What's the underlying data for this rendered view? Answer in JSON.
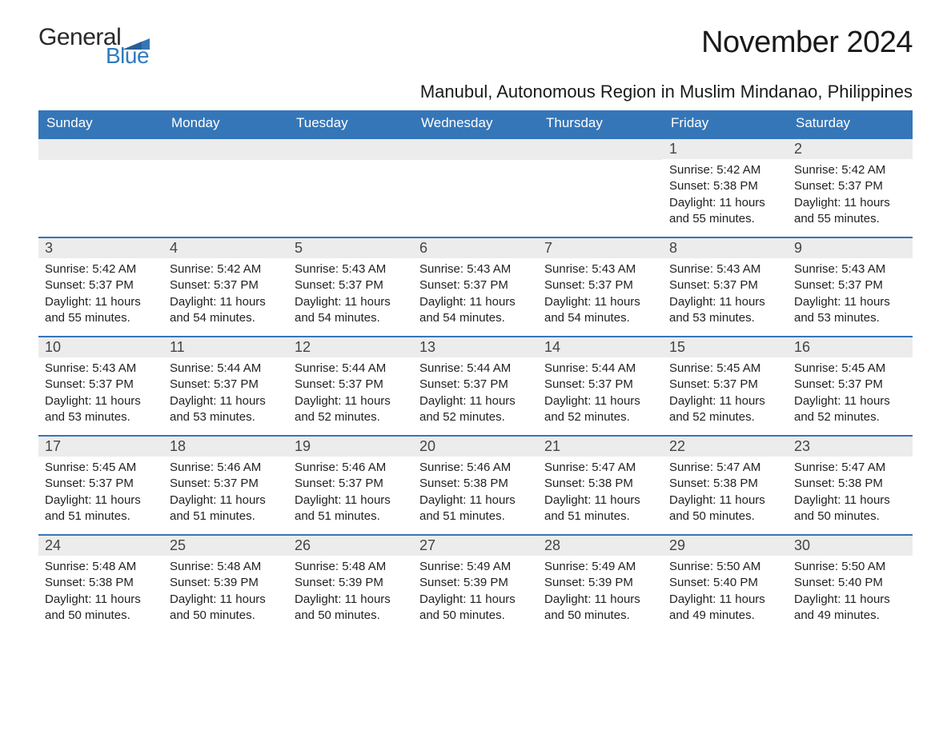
{
  "logo": {
    "general": "General",
    "blue": "Blue"
  },
  "title": "November 2024",
  "location": "Manubul, Autonomous Region in Muslim Mindanao, Philippines",
  "colors": {
    "header_bg": "#3576b8",
    "header_fg": "#ffffff",
    "daynum_bg": "#ececec",
    "text": "#222222",
    "logo_blue": "#2f7bbf",
    "border": "#3576b8"
  },
  "typography": {
    "title_fontsize": 38,
    "location_fontsize": 22,
    "dow_fontsize": 17,
    "daynum_fontsize": 18,
    "body_fontsize": 15
  },
  "days_of_week": [
    "Sunday",
    "Monday",
    "Tuesday",
    "Wednesday",
    "Thursday",
    "Friday",
    "Saturday"
  ],
  "weeks": [
    [
      null,
      null,
      null,
      null,
      null,
      {
        "n": "1",
        "sunrise": "Sunrise: 5:42 AM",
        "sunset": "Sunset: 5:38 PM",
        "daylight": "Daylight: 11 hours and 55 minutes."
      },
      {
        "n": "2",
        "sunrise": "Sunrise: 5:42 AM",
        "sunset": "Sunset: 5:37 PM",
        "daylight": "Daylight: 11 hours and 55 minutes."
      }
    ],
    [
      {
        "n": "3",
        "sunrise": "Sunrise: 5:42 AM",
        "sunset": "Sunset: 5:37 PM",
        "daylight": "Daylight: 11 hours and 55 minutes."
      },
      {
        "n": "4",
        "sunrise": "Sunrise: 5:42 AM",
        "sunset": "Sunset: 5:37 PM",
        "daylight": "Daylight: 11 hours and 54 minutes."
      },
      {
        "n": "5",
        "sunrise": "Sunrise: 5:43 AM",
        "sunset": "Sunset: 5:37 PM",
        "daylight": "Daylight: 11 hours and 54 minutes."
      },
      {
        "n": "6",
        "sunrise": "Sunrise: 5:43 AM",
        "sunset": "Sunset: 5:37 PM",
        "daylight": "Daylight: 11 hours and 54 minutes."
      },
      {
        "n": "7",
        "sunrise": "Sunrise: 5:43 AM",
        "sunset": "Sunset: 5:37 PM",
        "daylight": "Daylight: 11 hours and 54 minutes."
      },
      {
        "n": "8",
        "sunrise": "Sunrise: 5:43 AM",
        "sunset": "Sunset: 5:37 PM",
        "daylight": "Daylight: 11 hours and 53 minutes."
      },
      {
        "n": "9",
        "sunrise": "Sunrise: 5:43 AM",
        "sunset": "Sunset: 5:37 PM",
        "daylight": "Daylight: 11 hours and 53 minutes."
      }
    ],
    [
      {
        "n": "10",
        "sunrise": "Sunrise: 5:43 AM",
        "sunset": "Sunset: 5:37 PM",
        "daylight": "Daylight: 11 hours and 53 minutes."
      },
      {
        "n": "11",
        "sunrise": "Sunrise: 5:44 AM",
        "sunset": "Sunset: 5:37 PM",
        "daylight": "Daylight: 11 hours and 53 minutes."
      },
      {
        "n": "12",
        "sunrise": "Sunrise: 5:44 AM",
        "sunset": "Sunset: 5:37 PM",
        "daylight": "Daylight: 11 hours and 52 minutes."
      },
      {
        "n": "13",
        "sunrise": "Sunrise: 5:44 AM",
        "sunset": "Sunset: 5:37 PM",
        "daylight": "Daylight: 11 hours and 52 minutes."
      },
      {
        "n": "14",
        "sunrise": "Sunrise: 5:44 AM",
        "sunset": "Sunset: 5:37 PM",
        "daylight": "Daylight: 11 hours and 52 minutes."
      },
      {
        "n": "15",
        "sunrise": "Sunrise: 5:45 AM",
        "sunset": "Sunset: 5:37 PM",
        "daylight": "Daylight: 11 hours and 52 minutes."
      },
      {
        "n": "16",
        "sunrise": "Sunrise: 5:45 AM",
        "sunset": "Sunset: 5:37 PM",
        "daylight": "Daylight: 11 hours and 52 minutes."
      }
    ],
    [
      {
        "n": "17",
        "sunrise": "Sunrise: 5:45 AM",
        "sunset": "Sunset: 5:37 PM",
        "daylight": "Daylight: 11 hours and 51 minutes."
      },
      {
        "n": "18",
        "sunrise": "Sunrise: 5:46 AM",
        "sunset": "Sunset: 5:37 PM",
        "daylight": "Daylight: 11 hours and 51 minutes."
      },
      {
        "n": "19",
        "sunrise": "Sunrise: 5:46 AM",
        "sunset": "Sunset: 5:37 PM",
        "daylight": "Daylight: 11 hours and 51 minutes."
      },
      {
        "n": "20",
        "sunrise": "Sunrise: 5:46 AM",
        "sunset": "Sunset: 5:38 PM",
        "daylight": "Daylight: 11 hours and 51 minutes."
      },
      {
        "n": "21",
        "sunrise": "Sunrise: 5:47 AM",
        "sunset": "Sunset: 5:38 PM",
        "daylight": "Daylight: 11 hours and 51 minutes."
      },
      {
        "n": "22",
        "sunrise": "Sunrise: 5:47 AM",
        "sunset": "Sunset: 5:38 PM",
        "daylight": "Daylight: 11 hours and 50 minutes."
      },
      {
        "n": "23",
        "sunrise": "Sunrise: 5:47 AM",
        "sunset": "Sunset: 5:38 PM",
        "daylight": "Daylight: 11 hours and 50 minutes."
      }
    ],
    [
      {
        "n": "24",
        "sunrise": "Sunrise: 5:48 AM",
        "sunset": "Sunset: 5:38 PM",
        "daylight": "Daylight: 11 hours and 50 minutes."
      },
      {
        "n": "25",
        "sunrise": "Sunrise: 5:48 AM",
        "sunset": "Sunset: 5:39 PM",
        "daylight": "Daylight: 11 hours and 50 minutes."
      },
      {
        "n": "26",
        "sunrise": "Sunrise: 5:48 AM",
        "sunset": "Sunset: 5:39 PM",
        "daylight": "Daylight: 11 hours and 50 minutes."
      },
      {
        "n": "27",
        "sunrise": "Sunrise: 5:49 AM",
        "sunset": "Sunset: 5:39 PM",
        "daylight": "Daylight: 11 hours and 50 minutes."
      },
      {
        "n": "28",
        "sunrise": "Sunrise: 5:49 AM",
        "sunset": "Sunset: 5:39 PM",
        "daylight": "Daylight: 11 hours and 50 minutes."
      },
      {
        "n": "29",
        "sunrise": "Sunrise: 5:50 AM",
        "sunset": "Sunset: 5:40 PM",
        "daylight": "Daylight: 11 hours and 49 minutes."
      },
      {
        "n": "30",
        "sunrise": "Sunrise: 5:50 AM",
        "sunset": "Sunset: 5:40 PM",
        "daylight": "Daylight: 11 hours and 49 minutes."
      }
    ]
  ]
}
